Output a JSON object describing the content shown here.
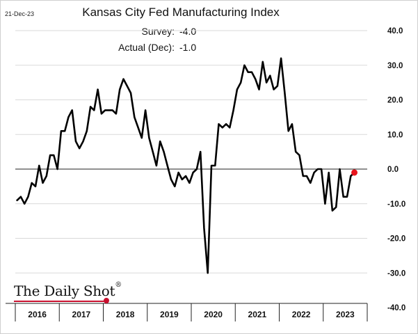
{
  "header": {
    "date": "21-Dec-23",
    "title": "Kansas City Fed Manufacturing Index"
  },
  "annotations": [
    {
      "label": "Survey:",
      "value": "-4.0"
    },
    {
      "label": "Actual (Dec):",
      "value": "-1.0"
    }
  ],
  "logo": {
    "text": "The Daily Shot",
    "mark": "®",
    "accent_color": "#c8102e"
  },
  "chart_data": {
    "type": "line",
    "title": "Kansas City Fed Manufacturing Index",
    "xlabel": "",
    "ylabel": "",
    "ylim": [
      -40,
      40
    ],
    "yticks": [
      40,
      30,
      20,
      10,
      0,
      -10,
      -20,
      -30,
      -40
    ],
    "ytick_labels": [
      "40.0",
      "30.0",
      "20.0",
      "10.0",
      "0.0",
      "-10.0",
      "-20.0",
      "-30.0",
      "-40.0"
    ],
    "xticks": [
      "2016",
      "2017",
      "2018",
      "2019",
      "2020",
      "2021",
      "2022",
      "2023"
    ],
    "x_start": "2016-01",
    "grid": true,
    "line_color": "#000000",
    "highlight_color": "#e8141c",
    "series": [
      {
        "values": [
          -9,
          -8,
          -10,
          -8,
          -4,
          -5,
          1,
          -4,
          -2,
          4,
          4,
          0,
          11,
          11,
          15,
          17,
          8,
          6,
          8,
          11,
          18,
          17,
          23,
          16,
          17,
          17,
          17,
          16,
          23,
          26,
          24,
          22,
          15,
          12,
          9,
          17,
          9,
          5,
          1,
          8,
          5,
          1,
          -3,
          -5,
          -1,
          -3,
          -2,
          -4,
          -1,
          0,
          5,
          -17,
          -30,
          1,
          1,
          13,
          12,
          13,
          12,
          17,
          23,
          25,
          30,
          28,
          28,
          26,
          23,
          31,
          25,
          27,
          23,
          24,
          32,
          22,
          11,
          13,
          5,
          4,
          -2,
          -2,
          -4,
          -1,
          0,
          0,
          -10,
          -1,
          -12,
          -11,
          0,
          -8,
          -8,
          -2,
          -1
        ]
      }
    ],
    "highlight_point": {
      "x": "2023-12",
      "y": -1.0
    }
  }
}
